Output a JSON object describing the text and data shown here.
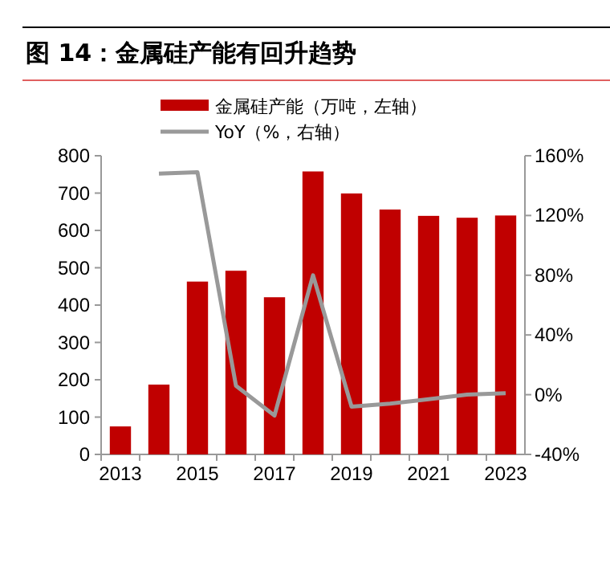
{
  "chart_data": {
    "type": "bar",
    "title": "图 14：金属硅产能有回升趋势",
    "categories": [
      "2013",
      null,
      "2015",
      null,
      "2017",
      null,
      "2019",
      null,
      "2021",
      null,
      "2023"
    ],
    "series": [
      {
        "name": "金属硅产能（万吨，左轴）",
        "color": "#c00000",
        "values": [
          75,
          187,
          463,
          492,
          421,
          758,
          699,
          656,
          639,
          634,
          640
        ]
      },
      {
        "name": "YoY（%，右轴）",
        "type": "line",
        "axis": "y2",
        "color": "#999999",
        "values": [
          null,
          148,
          149,
          6,
          -14,
          80,
          -8,
          -6,
          -3,
          0,
          1
        ]
      }
    ],
    "ylim": [
      0,
      800
    ],
    "yticks": [
      0,
      100,
      200,
      300,
      400,
      500,
      600,
      700,
      800
    ],
    "y2lim": [
      -40,
      160
    ],
    "y2ticks": [
      {
        "value": -40,
        "label": "-40%"
      },
      {
        "value": 0,
        "label": "0%"
      },
      {
        "value": 40,
        "label": "40%"
      },
      {
        "value": 80,
        "label": "80%"
      },
      {
        "value": 120,
        "label": "120%"
      },
      {
        "value": 160,
        "label": "160%"
      }
    ],
    "legend": "top",
    "grid": false
  }
}
